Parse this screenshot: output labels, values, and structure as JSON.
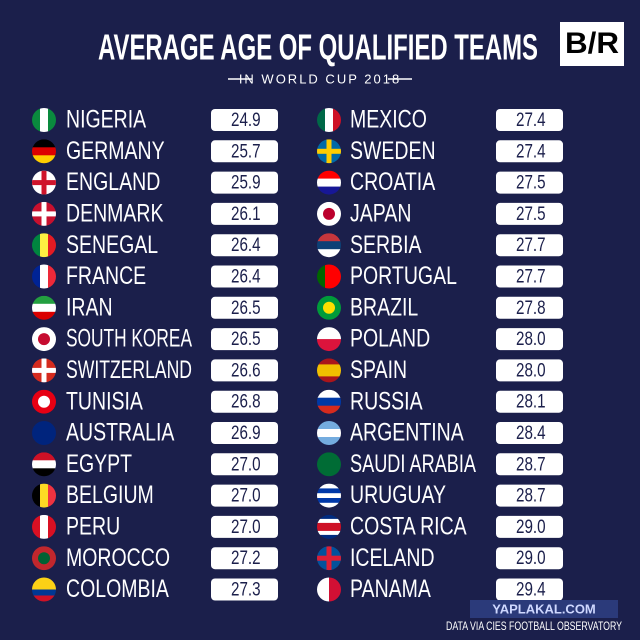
{
  "header": {
    "title": "AVERAGE AGE OF QUALIFIED TEAMS",
    "subtitle": "IN WORLD CUP 2018",
    "logo": "B/R"
  },
  "columns": [
    [
      {
        "team": "NIGERIA",
        "age": "24.9"
      },
      {
        "team": "GERMANY",
        "age": "25.7"
      },
      {
        "team": "ENGLAND",
        "age": "25.9"
      },
      {
        "team": "DENMARK",
        "age": "26.1"
      },
      {
        "team": "SENEGAL",
        "age": "26.4"
      },
      {
        "team": "FRANCE",
        "age": "26.4"
      },
      {
        "team": "IRAN",
        "age": "26.5"
      },
      {
        "team": "SOUTH KOREA",
        "age": "26.5"
      },
      {
        "team": "SWITZERLAND",
        "age": "26.6"
      },
      {
        "team": "TUNISIA",
        "age": "26.8"
      },
      {
        "team": "AUSTRALIA",
        "age": "26.9"
      },
      {
        "team": "EGYPT",
        "age": "27.0"
      },
      {
        "team": "BELGIUM",
        "age": "27.0"
      },
      {
        "team": "PERU",
        "age": "27.0"
      },
      {
        "team": "MOROCCO",
        "age": "27.2"
      },
      {
        "team": "COLOMBIA",
        "age": "27.3"
      }
    ],
    [
      {
        "team": "MEXICO",
        "age": "27.4"
      },
      {
        "team": "SWEDEN",
        "age": "27.4"
      },
      {
        "team": "CROATIA",
        "age": "27.5"
      },
      {
        "team": "JAPAN",
        "age": "27.5"
      },
      {
        "team": "SERBIA",
        "age": "27.7"
      },
      {
        "team": "PORTUGAL",
        "age": "27.7"
      },
      {
        "team": "BRAZIL",
        "age": "27.8"
      },
      {
        "team": "POLAND",
        "age": "28.0"
      },
      {
        "team": "SPAIN",
        "age": "28.0"
      },
      {
        "team": "RUSSIA",
        "age": "28.1"
      },
      {
        "team": "ARGENTINA",
        "age": "28.4"
      },
      {
        "team": "SAUDI ARABIA",
        "age": "28.7"
      },
      {
        "team": "URUGUAY",
        "age": "28.7"
      },
      {
        "team": "COSTA RICA",
        "age": "29.0"
      },
      {
        "team": "ICELAND",
        "age": "29.0"
      },
      {
        "team": "PANAMA",
        "age": "29.4"
      }
    ]
  ],
  "footer": {
    "watermark": "YAPLAKAL.COM",
    "source": "DATA VIA CIES FOOTBALL OBSERVATORY"
  }
}
